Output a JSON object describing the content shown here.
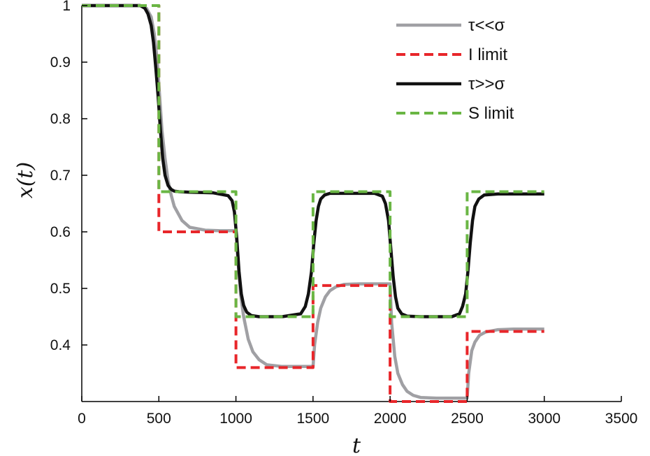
{
  "chart_data": {
    "type": "line",
    "xlabel": "t",
    "ylabel": "x(t)",
    "xlim": [
      0,
      3500
    ],
    "ylim": [
      0.3,
      1.0
    ],
    "xticks": [
      0,
      500,
      1000,
      1500,
      2000,
      2500,
      3000,
      3500
    ],
    "yticks": [
      0.4,
      0.5,
      0.6,
      0.7,
      0.8,
      0.9,
      1
    ],
    "xtick_labels": [
      "0",
      "500",
      "1000",
      "1500",
      "2000",
      "2500",
      "3000",
      "3500"
    ],
    "ytick_labels": [
      "0.4",
      "0.5",
      "0.6",
      "0.7",
      "0.8",
      "0.9",
      "1"
    ],
    "grid": false,
    "legend_position": "top-right",
    "series": [
      {
        "name": "τ<<σ",
        "color": "#a0a0a4",
        "style": "solid",
        "x": [
          0,
          380,
          420,
          450,
          470,
          490,
          500,
          510,
          520,
          540,
          560,
          580,
          600,
          650,
          700,
          800,
          900,
          1000,
          1010,
          1030,
          1050,
          1080,
          1110,
          1150,
          1200,
          1300,
          1400,
          1500,
          1510,
          1530,
          1550,
          1580,
          1610,
          1650,
          1700,
          1800,
          1900,
          2000,
          2010,
          2030,
          2050,
          2080,
          2110,
          2150,
          2200,
          2300,
          2400,
          2500,
          2510,
          2530,
          2550,
          2580,
          2620,
          2700,
          2800,
          2900,
          3000
        ],
        "y": [
          1,
          1,
          0.995,
          0.98,
          0.95,
          0.9,
          0.86,
          0.82,
          0.78,
          0.73,
          0.69,
          0.665,
          0.645,
          0.62,
          0.608,
          0.603,
          0.602,
          0.602,
          0.56,
          0.49,
          0.45,
          0.41,
          0.388,
          0.374,
          0.365,
          0.362,
          0.362,
          0.362,
          0.4,
          0.44,
          0.465,
          0.485,
          0.496,
          0.503,
          0.507,
          0.508,
          0.508,
          0.508,
          0.44,
          0.38,
          0.35,
          0.33,
          0.318,
          0.311,
          0.307,
          0.306,
          0.306,
          0.306,
          0.35,
          0.39,
          0.405,
          0.417,
          0.423,
          0.427,
          0.428,
          0.428,
          0.428
        ]
      },
      {
        "name": "I limit",
        "color": "#e8262a",
        "style": "dashed",
        "x": [
          0,
          500,
          500,
          1000,
          1000,
          1500,
          1500,
          2000,
          2000,
          2500,
          2500,
          3000
        ],
        "y": [
          1,
          1,
          0.6,
          0.6,
          0.36,
          0.36,
          0.505,
          0.505,
          0.3,
          0.3,
          0.424,
          0.424
        ]
      },
      {
        "name": "τ>>σ",
        "color": "#111111",
        "style": "solid",
        "x": [
          0,
          380,
          410,
          430,
          450,
          465,
          480,
          495,
          510,
          525,
          540,
          560,
          580,
          600,
          630,
          700,
          850,
          950,
          975,
          990,
          1005,
          1020,
          1035,
          1050,
          1070,
          1100,
          1150,
          1300,
          1420,
          1450,
          1470,
          1490,
          1505,
          1520,
          1535,
          1550,
          1575,
          1610,
          1700,
          1900,
          1950,
          1970,
          1990,
          2005,
          2020,
          2035,
          2050,
          2075,
          2110,
          2200,
          2400,
          2450,
          2470,
          2490,
          2505,
          2520,
          2535,
          2550,
          2575,
          2610,
          2700,
          3000
        ],
        "y": [
          1,
          1,
          0.995,
          0.985,
          0.965,
          0.935,
          0.89,
          0.84,
          0.78,
          0.73,
          0.7,
          0.682,
          0.675,
          0.672,
          0.671,
          0.67,
          0.669,
          0.664,
          0.655,
          0.635,
          0.59,
          0.53,
          0.49,
          0.47,
          0.458,
          0.452,
          0.45,
          0.45,
          0.455,
          0.468,
          0.49,
          0.53,
          0.58,
          0.62,
          0.645,
          0.658,
          0.665,
          0.668,
          0.668,
          0.668,
          0.663,
          0.65,
          0.62,
          0.57,
          0.52,
          0.485,
          0.465,
          0.455,
          0.451,
          0.45,
          0.45,
          0.455,
          0.468,
          0.49,
          0.53,
          0.58,
          0.62,
          0.645,
          0.658,
          0.665,
          0.667,
          0.667
        ]
      },
      {
        "name": "S limit",
        "color": "#6ab644",
        "style": "dashed",
        "x": [
          0,
          500,
          500,
          1000,
          1000,
          1500,
          1500,
          2000,
          2000,
          2500,
          2500,
          3000
        ],
        "y": [
          1,
          1,
          0.671,
          0.671,
          0.45,
          0.45,
          0.671,
          0.671,
          0.45,
          0.45,
          0.671,
          0.671
        ]
      }
    ]
  }
}
